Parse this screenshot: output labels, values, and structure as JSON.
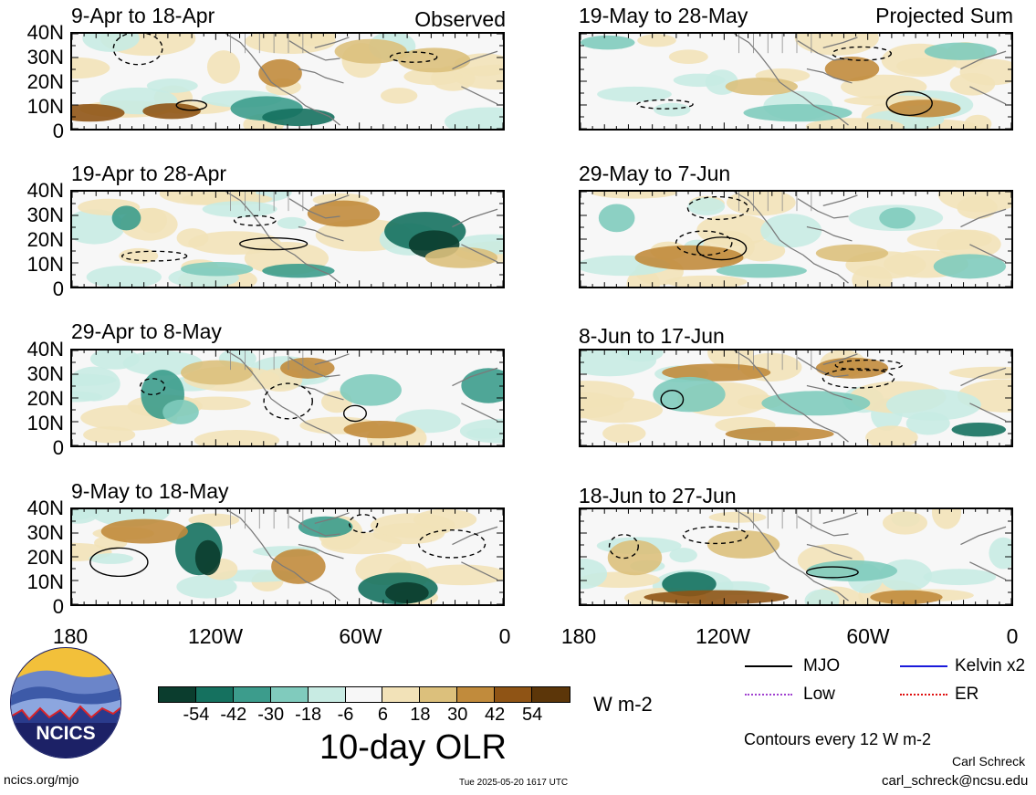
{
  "header": {
    "left_label": "Observed",
    "right_label": "Projected Sum"
  },
  "panels_left": [
    {
      "title": "9-Apr to 18-Apr"
    },
    {
      "title": "19-Apr to 28-Apr"
    },
    {
      "title": "29-Apr to 8-May"
    },
    {
      "title": "9-May to 18-May"
    }
  ],
  "panels_right": [
    {
      "title": "19-May to 28-May"
    },
    {
      "title": "29-May to 7-Jun"
    },
    {
      "title": "8-Jun to 17-Jun"
    },
    {
      "title": "18-Jun to 27-Jun"
    }
  ],
  "y_ticks": [
    "40N",
    "30N",
    "20N",
    "10N",
    "0"
  ],
  "x_ticks_left": [
    "180",
    "120W",
    "60W",
    "0"
  ],
  "x_ticks_right": [
    "180",
    "120W",
    "60W",
    "0"
  ],
  "colorbar": {
    "colors": [
      "#0b3d2e",
      "#15715f",
      "#3c9c8c",
      "#80cbbd",
      "#c8ebe3",
      "#f7f7f7",
      "#f2e2b8",
      "#dcc07c",
      "#c18b3c",
      "#8f5415",
      "#5c3609"
    ],
    "ticks": [
      "-54",
      "-42",
      "-30",
      "-18",
      "-6",
      "6",
      "18",
      "30",
      "42",
      "54"
    ],
    "units": "W m-2",
    "title": "10-day OLR"
  },
  "legend": {
    "mjo": "MJO",
    "kelvin": "Kelvin x2",
    "low": "Low",
    "er": "ER",
    "colors": {
      "mjo": "#000000",
      "kelvin": "#1a1adb",
      "low": "#a040d0",
      "er": "#e01010"
    },
    "contour_note": "Contours every 12 W m-2"
  },
  "footer": {
    "author": "Carl Schreck",
    "email": "carl_schreck@ncsu.edu",
    "url": "ncics.org/mjo",
    "timestamp": "Tue 2025-05-20 1617 UTC",
    "logo_text": "NCICS"
  }
}
